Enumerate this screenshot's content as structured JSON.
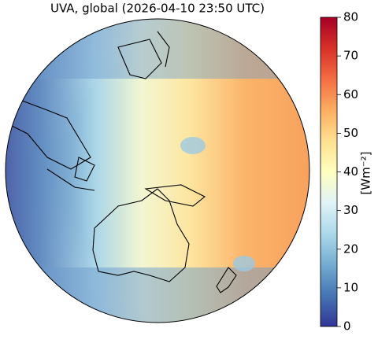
{
  "title": "UVA, global (2026-04-10 23:50 UTC)",
  "colorbar": {
    "label": "[Wm⁻²]",
    "lim": [
      0,
      80
    ],
    "ticks": [
      0,
      10,
      20,
      30,
      40,
      50,
      60,
      70,
      80
    ],
    "colors": [
      "#313695",
      "#4575b4",
      "#74add1",
      "#abd9e9",
      "#e0f3f8",
      "#ffffbf",
      "#fee090",
      "#fdae61",
      "#f46d43",
      "#d73027",
      "#a50026"
    ]
  }
}
